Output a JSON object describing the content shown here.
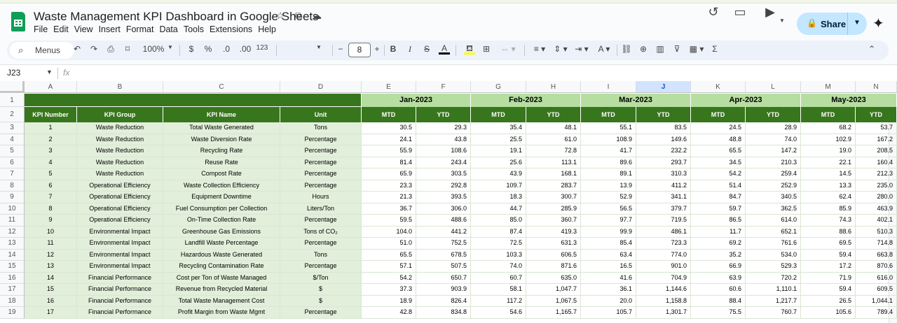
{
  "app": {
    "doc_title": "Waste Management KPI Dashboard in Google Sheets",
    "menu": [
      "File",
      "Edit",
      "View",
      "Insert",
      "Format",
      "Data",
      "Tools",
      "Extensions",
      "Help"
    ],
    "share_label": "Share"
  },
  "toolbar": {
    "menus_label": "Menus",
    "zoom": "100%",
    "currency": "$",
    "percent": "%",
    "dec_decrease": ".0",
    "dec_increase": ".00",
    "number_format": "123",
    "font_size": "8"
  },
  "formula_bar": {
    "name_box": "J23",
    "fx": "fx"
  },
  "grid": {
    "columns": [
      "A",
      "B",
      "C",
      "D",
      "E",
      "F",
      "G",
      "H",
      "I",
      "J",
      "K",
      "L",
      "M",
      "N"
    ],
    "selected_column": "J",
    "row_numbers": [
      "1",
      "2",
      "3",
      "4",
      "5",
      "6",
      "7",
      "8",
      "9",
      "10",
      "11",
      "12",
      "13",
      "14",
      "15",
      "16",
      "17",
      "18",
      "19"
    ],
    "months": [
      "Jan-2023",
      "Feb-2023",
      "Mar-2023",
      "Apr-2023",
      "May-2023"
    ],
    "headers": [
      "KPI Number",
      "KPI Group",
      "KPI Name",
      "Unit"
    ],
    "mtd": "MTD",
    "ytd": "YTD",
    "rows": [
      [
        "1",
        "Waste Reduction",
        "Total Waste Generated",
        "Tons",
        "30.5",
        "29.3",
        "35.4",
        "48.1",
        "55.1",
        "83.5",
        "24.5",
        "28.9",
        "68.2",
        "53.7"
      ],
      [
        "2",
        "Waste Reduction",
        "Waste Diversion Rate",
        "Percentage",
        "24.1",
        "43.8",
        "25.5",
        "61.0",
        "108.9",
        "149.6",
        "48.8",
        "74.0",
        "102.9",
        "167.2"
      ],
      [
        "3",
        "Waste Reduction",
        "Recycling Rate",
        "Percentage",
        "55.9",
        "108.6",
        "19.1",
        "72.8",
        "41.7",
        "232.2",
        "65.5",
        "147.2",
        "19.0",
        "208.5"
      ],
      [
        "4",
        "Waste Reduction",
        "Reuse Rate",
        "Percentage",
        "81.4",
        "243.4",
        "25.6",
        "113.1",
        "89.6",
        "293.7",
        "34.5",
        "210.3",
        "22.1",
        "160.4"
      ],
      [
        "5",
        "Waste Reduction",
        "Compost Rate",
        "Percentage",
        "65.9",
        "303.5",
        "43.9",
        "168.1",
        "89.1",
        "310.3",
        "54.2",
        "259.4",
        "14.5",
        "212.3"
      ],
      [
        "6",
        "Operational Efficiency",
        "Waste Collection Efficiency",
        "Percentage",
        "23.3",
        "292.8",
        "109.7",
        "283.7",
        "13.9",
        "411.2",
        "51.4",
        "252.9",
        "13.3",
        "235.0"
      ],
      [
        "7",
        "Operational Efficiency",
        "Equipment Downtime",
        "Hours",
        "21.3",
        "393.5",
        "18.3",
        "300.7",
        "52.9",
        "341.1",
        "84.7",
        "340.5",
        "62.4",
        "280.0"
      ],
      [
        "8",
        "Operational Efficiency",
        "Fuel Consumption per Collection",
        "Liters/Ton",
        "36.7",
        "306.0",
        "44.7",
        "285.9",
        "56.5",
        "379.7",
        "59.7",
        "362.5",
        "85.9",
        "463.9"
      ],
      [
        "9",
        "Operational Efficiency",
        "On-Time Collection Rate",
        "Percentage",
        "59.5",
        "488.6",
        "85.0",
        "360.7",
        "97.7",
        "719.5",
        "86.5",
        "614.0",
        "74.3",
        "402.1"
      ],
      [
        "10",
        "Environmental Impact",
        "Greenhouse Gas Emissions",
        "Tons of CO₂",
        "104.0",
        "441.2",
        "87.4",
        "419.3",
        "99.9",
        "486.1",
        "11.7",
        "652.1",
        "88.6",
        "510.3"
      ],
      [
        "11",
        "Environmental Impact",
        "Landfill Waste Percentage",
        "Percentage",
        "51.0",
        "752.5",
        "72.5",
        "631.3",
        "85.4",
        "723.3",
        "69.2",
        "761.6",
        "69.5",
        "714.8"
      ],
      [
        "12",
        "Environmental Impact",
        "Hazardous Waste Generated",
        "Tons",
        "65.5",
        "678.5",
        "103.3",
        "606.5",
        "63.4",
        "774.0",
        "35.2",
        "534.0",
        "59.4",
        "663.8"
      ],
      [
        "13",
        "Environmental Impact",
        "Recycling Contamination Rate",
        "Percentage",
        "57.1",
        "507.5",
        "74.0",
        "871.6",
        "16.5",
        "901.0",
        "66.9",
        "529.3",
        "17.2",
        "870.6"
      ],
      [
        "14",
        "Financial Performance",
        "Cost per Ton of Waste Managed",
        "$/Ton",
        "54.2",
        "650.7",
        "60.7",
        "635.0",
        "41.6",
        "704.9",
        "63.9",
        "720.2",
        "71.9",
        "616.0"
      ],
      [
        "15",
        "Financial Performance",
        "Revenue from Recycled Material",
        "$",
        "37.3",
        "903.9",
        "58.1",
        "1,047.7",
        "36.1",
        "1,144.6",
        "60.6",
        "1,110.1",
        "59.4",
        "609.5"
      ],
      [
        "16",
        "Financial Performance",
        "Total Waste Management Cost",
        "$",
        "18.9",
        "826.4",
        "117.2",
        "1,067.5",
        "20.0",
        "1,158.8",
        "88.4",
        "1,217.7",
        "26.5",
        "1,044.1"
      ],
      [
        "17",
        "Financial Performance",
        "Profit Margin from Waste Mgmt",
        "Percentage",
        "42.8",
        "834.8",
        "54.6",
        "1,165.7",
        "105.7",
        "1,301.7",
        "75.5",
        "760.7",
        "105.6",
        "789.4"
      ]
    ]
  },
  "colors": {
    "dark_green": "#38761d",
    "light_green": "#b6dea0",
    "pale_green": "#e2efda",
    "share_bg": "#c2e7ff"
  }
}
